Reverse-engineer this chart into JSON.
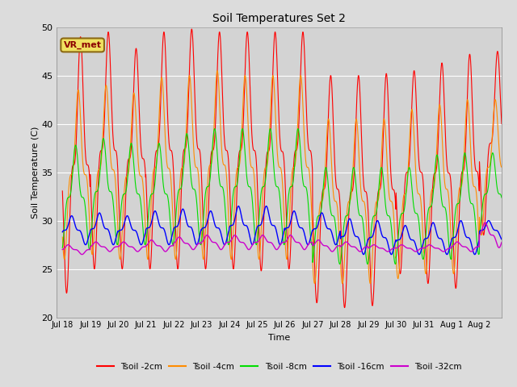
{
  "title": "Soil Temperatures Set 2",
  "xlabel": "Time",
  "ylabel": "Soil Temperature (C)",
  "ylim": [
    20,
    50
  ],
  "fig_bg_color": "#dcdcdc",
  "axes_bg_color": "#d3d3d3",
  "grid_color": "#ffffff",
  "annotation": "VR_met",
  "lines": [
    {
      "label": "Tsoil -2cm",
      "color": "#ff0000"
    },
    {
      "label": "Tsoil -4cm",
      "color": "#ff8c00"
    },
    {
      "label": "Tsoil -8cm",
      "color": "#00dd00"
    },
    {
      "label": "Tsoil -16cm",
      "color": "#0000ff"
    },
    {
      "label": "Tsoil -32cm",
      "color": "#cc00cc"
    }
  ],
  "tick_labels": [
    "Jul 18",
    "Jul 19",
    "Jul 20",
    "Jul 21",
    "Jul 22",
    "Jul 23",
    "Jul 24",
    "Jul 25",
    "Jul 26",
    "Jul 27",
    "Jul 28",
    "Jul 29",
    "Jul 30",
    "Jul 31",
    "Aug 1",
    "Aug 2"
  ],
  "num_days": 16,
  "points_per_day": 144,
  "phase_2cm": 0.0,
  "phase_4cm": 0.5,
  "phase_8cm": 1.1,
  "phase_16cm": 2.0,
  "phase_32cm": 2.8,
  "base_2cm": 27.0,
  "base_4cm": 27.0,
  "base_8cm": 27.5,
  "base_16cm": 27.5,
  "base_32cm": 27.0,
  "daily_peaks_2cm": [
    49.0,
    49.5,
    47.8,
    49.5,
    49.8,
    49.5,
    49.5,
    49.5,
    49.5,
    45.0,
    45.0,
    45.2,
    45.5,
    46.3,
    47.2,
    47.5
  ],
  "daily_mins_2cm": [
    22.5,
    25.0,
    25.0,
    25.0,
    25.0,
    25.0,
    25.0,
    24.8,
    25.0,
    21.5,
    21.0,
    21.2,
    24.5,
    23.5,
    23.0,
    28.5
  ],
  "daily_peaks_4cm": [
    43.5,
    44.0,
    43.2,
    44.8,
    45.0,
    45.5,
    45.0,
    45.0,
    45.0,
    40.5,
    40.5,
    40.5,
    41.5,
    42.0,
    42.5,
    42.5
  ],
  "daily_mins_4cm": [
    26.0,
    26.5,
    26.0,
    26.0,
    26.0,
    26.0,
    26.0,
    26.0,
    26.0,
    23.5,
    23.5,
    23.5,
    24.0,
    24.5,
    24.5,
    28.5
  ],
  "daily_peaks_8cm": [
    37.8,
    38.5,
    38.0,
    38.0,
    39.0,
    39.5,
    39.5,
    39.5,
    39.5,
    35.5,
    35.5,
    35.5,
    35.5,
    36.8,
    37.0,
    37.0
  ],
  "daily_mins_8cm": [
    27.0,
    27.5,
    27.5,
    27.5,
    27.5,
    27.5,
    27.5,
    27.5,
    27.5,
    25.5,
    25.5,
    25.5,
    26.0,
    26.0,
    26.5,
    28.5
  ],
  "daily_peaks_16cm": [
    30.5,
    30.8,
    30.5,
    31.0,
    31.2,
    31.0,
    31.5,
    31.5,
    31.0,
    30.8,
    30.2,
    30.0,
    29.5,
    29.8,
    30.0,
    30.0
  ],
  "daily_mins_16cm": [
    27.5,
    27.5,
    27.5,
    27.5,
    27.5,
    27.5,
    27.5,
    27.5,
    27.5,
    27.5,
    26.5,
    26.5,
    26.5,
    26.5,
    26.5,
    28.0
  ],
  "daily_peaks_32cm": [
    27.5,
    27.8,
    27.8,
    28.0,
    28.3,
    28.5,
    28.5,
    28.5,
    28.5,
    28.0,
    27.8,
    27.5,
    27.5,
    27.5,
    27.8,
    29.8
  ],
  "daily_mins_32cm": [
    26.5,
    26.8,
    26.8,
    26.8,
    27.0,
    27.0,
    27.0,
    27.0,
    27.0,
    26.8,
    26.8,
    26.8,
    26.8,
    26.8,
    26.8,
    27.2
  ]
}
